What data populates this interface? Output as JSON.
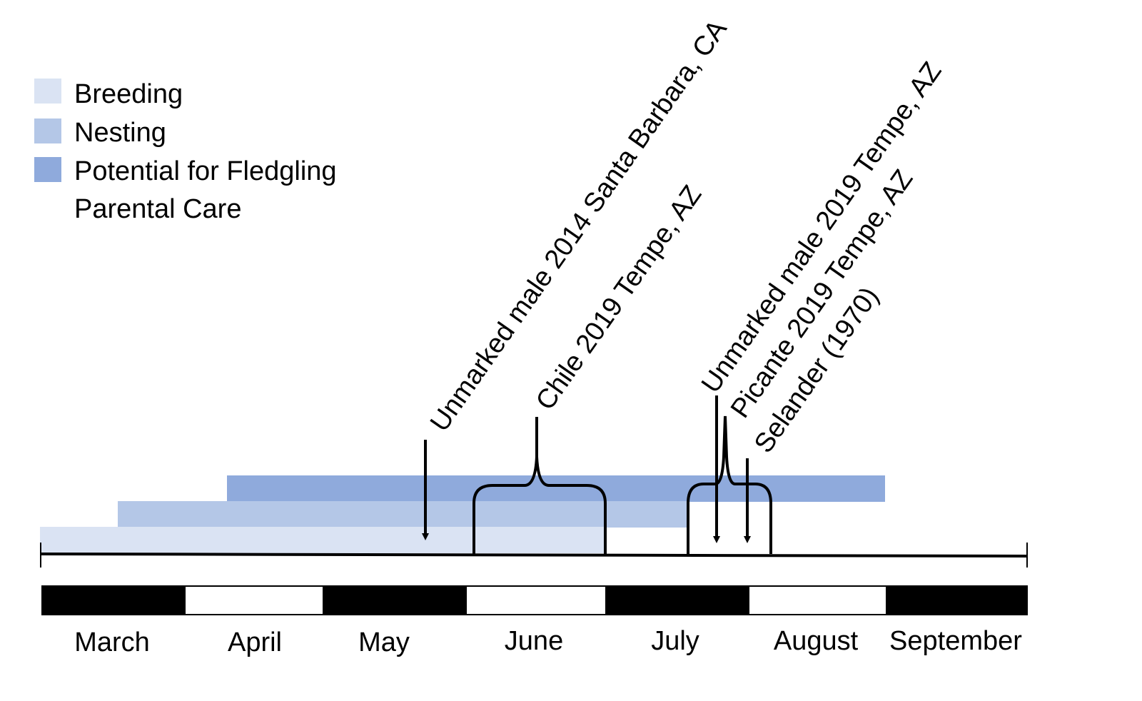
{
  "legend": {
    "items": [
      {
        "key": "breeding",
        "label": "Breeding",
        "color": "#dae3f3"
      },
      {
        "key": "nesting",
        "label": "Nesting",
        "color": "#b4c7e7"
      },
      {
        "key": "fledgling",
        "label": "Potential for Fledgling",
        "label_line2": "Parental Care",
        "color": "#8faadc"
      }
    ]
  },
  "timeline": {
    "months": [
      "March",
      "April",
      "May",
      "June",
      "July",
      "August",
      "September"
    ],
    "month_fill_pattern": [
      "black",
      "white",
      "black",
      "white",
      "black",
      "white",
      "black"
    ]
  },
  "phases": [
    {
      "key": "breeding",
      "start": "March",
      "end": "Mid-June"
    },
    {
      "key": "nesting",
      "start": "Mid-March",
      "end": "Early July"
    },
    {
      "key": "fledgling",
      "start": "Early April",
      "end": "Early September"
    }
  ],
  "observations": [
    {
      "key": "unmarked-2014",
      "label": "Unmarked male 2014 Santa Barbara, CA",
      "marker": "arrow"
    },
    {
      "key": "chile-2019",
      "label": "Chile 2019 Tempe, AZ",
      "marker": "bracket"
    },
    {
      "key": "unmarked-2019",
      "label": "Unmarked male 2019 Tempe, AZ",
      "marker": "arrow"
    },
    {
      "key": "picante-2019",
      "label": "Picante 2019 Tempe, AZ",
      "marker": "bracket"
    },
    {
      "key": "selander-1970",
      "label": "Selander (1970)",
      "marker": "arrow"
    }
  ]
}
